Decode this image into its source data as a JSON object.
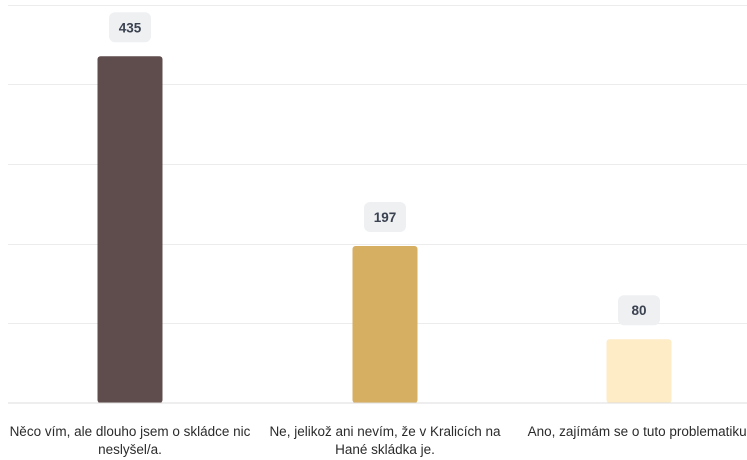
{
  "chart_data": {
    "type": "bar",
    "categories": [
      "Něco vím, ale dlouho jsem o skládce nic neslyšel/a.",
      "Ne, jelikož ani nevím, že v Kralicích na Hané skládka je.",
      "Ano, zajímám se o tuto problematiku."
    ],
    "values": [
      435,
      197,
      80
    ],
    "colors": [
      "#5f4c4c",
      "#d6af63",
      "#fdecc6"
    ],
    "data_labels": [
      "435",
      "197",
      "80"
    ],
    "ylim": [
      0,
      500
    ],
    "grid": true,
    "legend": "none",
    "title": "",
    "xlabel": "",
    "ylabel": ""
  }
}
